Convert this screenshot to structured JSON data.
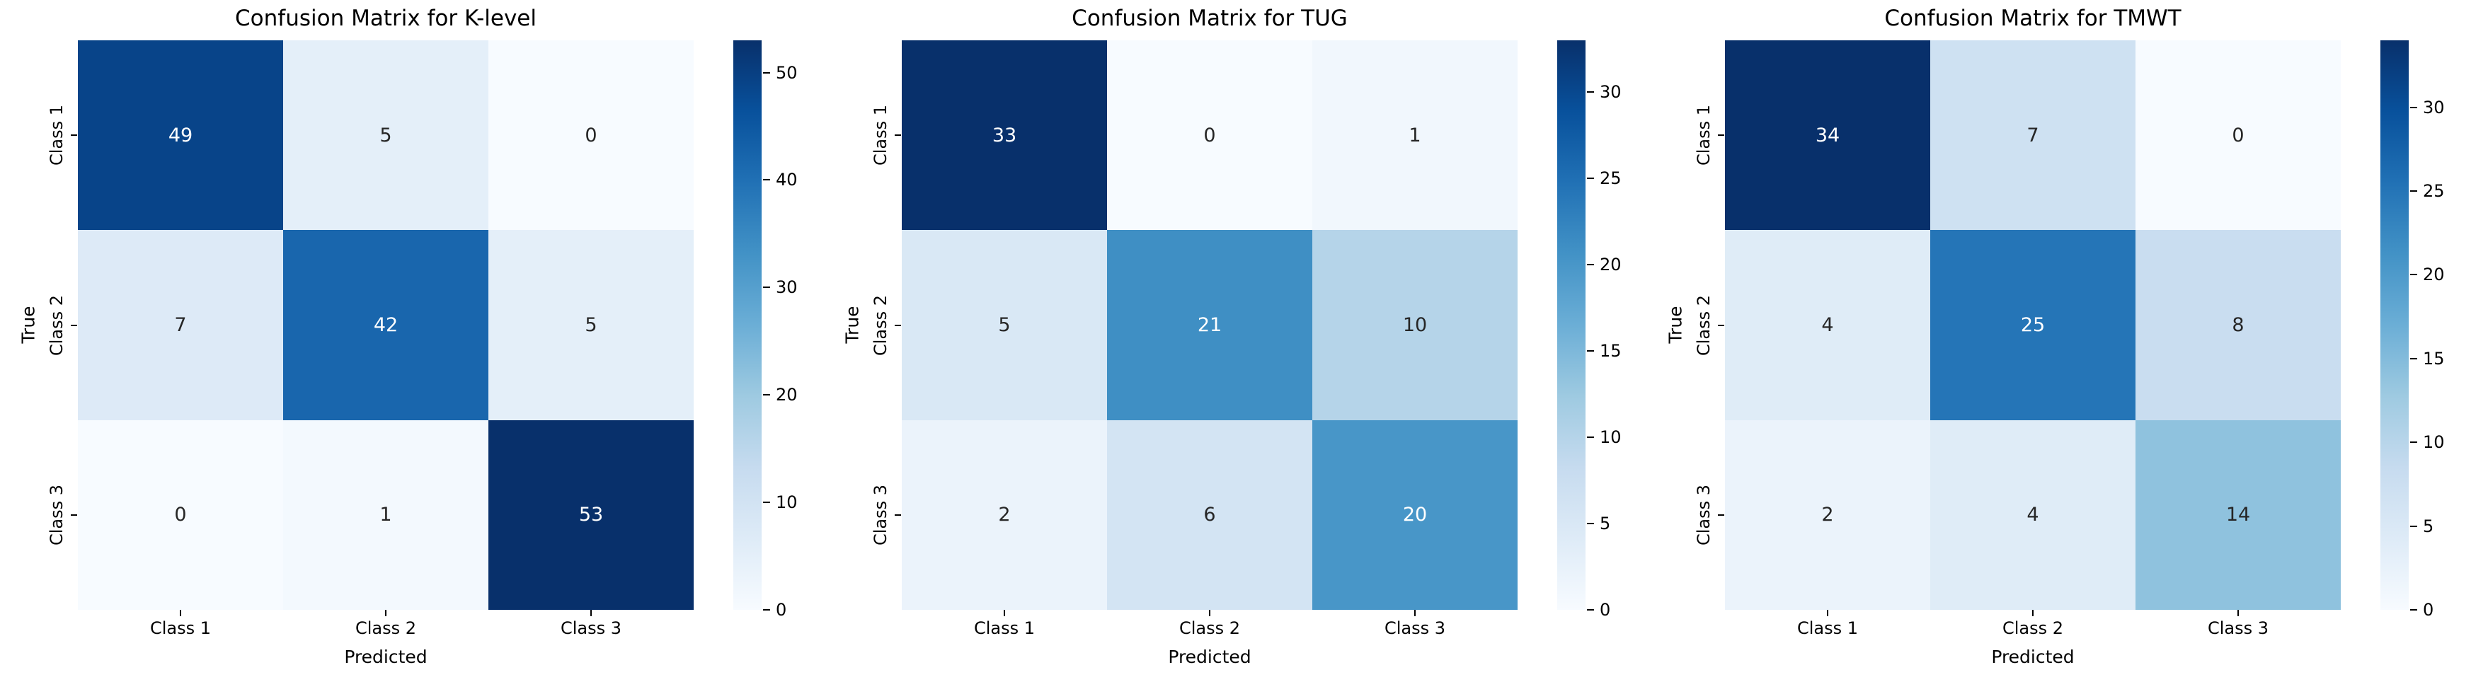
{
  "figure": {
    "background_color": "#ffffff",
    "text_color": "#000000"
  },
  "chart_data": [
    {
      "type": "heatmap",
      "title": "Confusion Matrix for K-level",
      "xlabel": "Predicted",
      "ylabel": "True",
      "x_tick_labels": [
        "Class 1",
        "Class 2",
        "Class 3"
      ],
      "y_tick_labels": [
        "Class 1",
        "Class 2",
        "Class 3"
      ],
      "matrix": [
        [
          49,
          5,
          0
        ],
        [
          7,
          42,
          5
        ],
        [
          0,
          1,
          53
        ]
      ],
      "vmin": 0,
      "vmax": 53,
      "colorbar_ticks": [
        0,
        10,
        20,
        30,
        40,
        50
      ],
      "colormap": "Blues",
      "colormap_anchors": [
        "#f7fbff",
        "#deebf7",
        "#c6dbef",
        "#9ecae1",
        "#6baed6",
        "#4292c6",
        "#2171b5",
        "#08519c",
        "#08306b"
      ],
      "annotation_color_on_light": "#262626",
      "annotation_color_on_dark": "#ffffff",
      "legend_position": "right-colorbar",
      "grid": false
    },
    {
      "type": "heatmap",
      "title": "Confusion Matrix for TUG",
      "xlabel": "Predicted",
      "ylabel": "True",
      "x_tick_labels": [
        "Class 1",
        "Class 2",
        "Class 3"
      ],
      "y_tick_labels": [
        "Class 1",
        "Class 2",
        "Class 3"
      ],
      "matrix": [
        [
          33,
          0,
          1
        ],
        [
          5,
          21,
          10
        ],
        [
          2,
          6,
          20
        ]
      ],
      "vmin": 0,
      "vmax": 33,
      "colorbar_ticks": [
        0,
        5,
        10,
        15,
        20,
        25,
        30
      ],
      "colormap": "Blues",
      "colormap_anchors": [
        "#f7fbff",
        "#deebf7",
        "#c6dbef",
        "#9ecae1",
        "#6baed6",
        "#4292c6",
        "#2171b5",
        "#08519c",
        "#08306b"
      ],
      "annotation_color_on_light": "#262626",
      "annotation_color_on_dark": "#ffffff",
      "legend_position": "right-colorbar",
      "grid": false
    },
    {
      "type": "heatmap",
      "title": "Confusion Matrix for TMWT",
      "xlabel": "Predicted",
      "ylabel": "True",
      "x_tick_labels": [
        "Class 1",
        "Class 2",
        "Class 3"
      ],
      "y_tick_labels": [
        "Class 1",
        "Class 2",
        "Class 3"
      ],
      "matrix": [
        [
          34,
          7,
          0
        ],
        [
          4,
          25,
          8
        ],
        [
          2,
          4,
          14
        ]
      ],
      "vmin": 0,
      "vmax": 34,
      "colorbar_ticks": [
        0,
        5,
        10,
        15,
        20,
        25,
        30
      ],
      "colormap": "Blues",
      "colormap_anchors": [
        "#f7fbff",
        "#deebf7",
        "#c6dbef",
        "#9ecae1",
        "#6baed6",
        "#4292c6",
        "#2171b5",
        "#08519c",
        "#08306b"
      ],
      "annotation_color_on_light": "#262626",
      "annotation_color_on_dark": "#ffffff",
      "legend_position": "right-colorbar",
      "grid": false
    }
  ]
}
